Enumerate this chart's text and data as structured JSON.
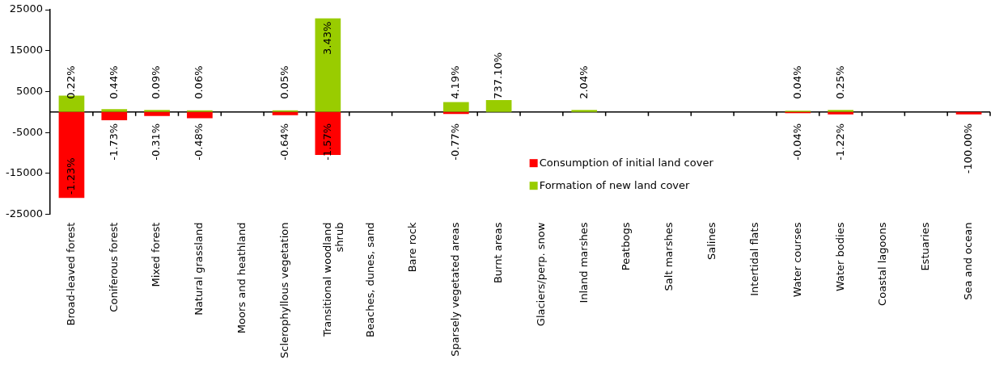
{
  "chart_data": {
    "type": "bar",
    "stacked": true,
    "categories": [
      "Broad-leaved forest",
      "Coniferous forest",
      "Mixed forest",
      "Natural grassland",
      "Moors and heathland",
      "Sclerophyllous vegetation",
      "Transitional woodland shrub",
      "Beaches, dunes, sand",
      "Bare rock",
      "Sparsely vegetated areas",
      "Burnt areas",
      "Glaciers/perp. snow",
      "Inland marshes",
      "Peatbogs",
      "Salt marshes",
      "Salines",
      "Intertidal flats",
      "Water courses",
      "Water bodies",
      "Coastal lagoons",
      "Estuaries",
      "Sea and ocean"
    ],
    "series": [
      {
        "name": "Consumption of initial land cover",
        "color": "#ff0000",
        "values": [
          -21000,
          -2000,
          -1000,
          -1500,
          null,
          -800,
          -10500,
          null,
          null,
          -500,
          null,
          null,
          null,
          null,
          null,
          null,
          null,
          -300,
          -600,
          null,
          null,
          -600
        ]
      },
      {
        "name": "Formation of new land cover",
        "color": "#99cc00",
        "values": [
          4000,
          700,
          500,
          400,
          null,
          400,
          22900,
          null,
          null,
          2400,
          2900,
          null,
          500,
          null,
          null,
          null,
          null,
          300,
          500,
          null,
          null,
          null
        ]
      }
    ],
    "annotations": [
      {
        "text": "0.22%",
        "x": "Broad-leaved forest",
        "y": 4000
      },
      {
        "text": "-1.23%",
        "x": "Broad-leaved forest",
        "y": -21000
      },
      {
        "text": "0.44%",
        "x": "Coniferous forest",
        "y": 700
      },
      {
        "text": "-1.73%",
        "x": "Coniferous forest",
        "y": -2000
      },
      {
        "text": "0.09%",
        "x": "Mixed forest",
        "y": 500
      },
      {
        "text": "-0.31%",
        "x": "Mixed forest",
        "y": -1000
      },
      {
        "text": "0.06%",
        "x": "Natural grassland",
        "y": 400
      },
      {
        "text": "-0.48%",
        "x": "Natural grassland",
        "y": -1500
      },
      {
        "text": "0.05%",
        "x": "Sclerophyllous vegetation",
        "y": 400
      },
      {
        "text": "-0.64%",
        "x": "Sclerophyllous vegetation",
        "y": -800
      },
      {
        "text": "3.43%",
        "x": "Transitional woodland shrub",
        "y": 22900
      },
      {
        "text": "-1.57%",
        "x": "Transitional woodland shrub",
        "y": -10500
      },
      {
        "text": "4.19%",
        "x": "Sparsely vegetated areas",
        "y": 2400
      },
      {
        "text": "-0.77%",
        "x": "Sparsely vegetated areas",
        "y": -500
      },
      {
        "text": "737.10%",
        "x": "Burnt areas",
        "y": 2900
      },
      {
        "text": "2.04%",
        "x": "Inland marshes",
        "y": 500
      },
      {
        "text": "0.04%",
        "x": "Water courses",
        "y": 300
      },
      {
        "text": "-0.04%",
        "x": "Water courses",
        "y": -300
      },
      {
        "text": "0.25%",
        "x": "Water bodies",
        "y": 500
      },
      {
        "text": "-1.22%",
        "x": "Water bodies",
        "y": -600
      },
      {
        "text": "-100.00%",
        "x": "Sea and ocean",
        "y": -600
      }
    ],
    "ylim": [
      -25000,
      25000
    ],
    "yticks": [
      25000,
      15000,
      5000,
      -5000,
      -15000,
      -25000
    ],
    "grid": false,
    "legend": "bottom"
  }
}
